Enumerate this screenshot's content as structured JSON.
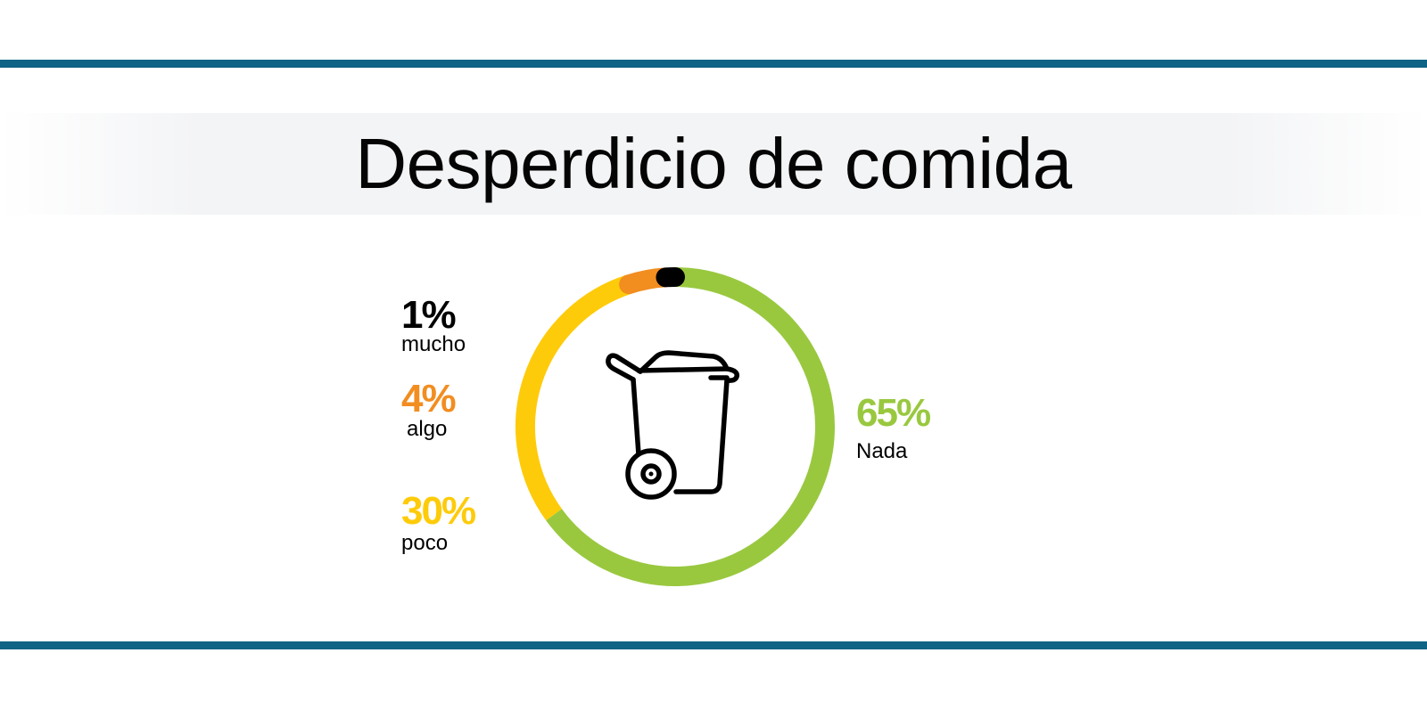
{
  "chart_data": {
    "type": "pie",
    "title": "Desperdicio de comida",
    "slices": [
      {
        "label": "Nada",
        "value": 65,
        "value_text": "65%",
        "color": "#99c83f"
      },
      {
        "label": "poco",
        "value": 30,
        "value_text": "30%",
        "color": "#fecb0a"
      },
      {
        "label": "algo",
        "value": 4,
        "value_text": "4%",
        "color": "#f28d20"
      },
      {
        "label": "mucho",
        "value": 1,
        "value_text": "1%",
        "color": "#000000"
      }
    ],
    "center_icon": "trash-bin-icon",
    "legend": "beside-ring",
    "rule_color": "#0f6384"
  }
}
